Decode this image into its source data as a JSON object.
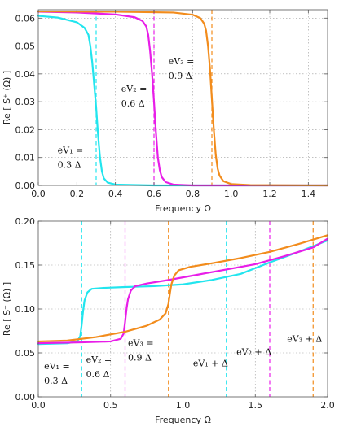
{
  "colors": {
    "eV1": "#22e5ee",
    "eV2": "#e81ee8",
    "eV3": "#f28c1c"
  },
  "chart_data": [
    {
      "type": "line",
      "xlabel": "Frequency Ω",
      "ylabel": "Re [ S⁺ (Ω) ]",
      "xlim": [
        0.0,
        1.5
      ],
      "ylim": [
        0.0,
        0.063
      ],
      "xticks": [
        0.0,
        0.2,
        0.4,
        0.6,
        0.8,
        1.0,
        1.2,
        1.4
      ],
      "xtick_labels": [
        "0.0",
        "0.2",
        "0.4",
        "0.6",
        "0.8",
        "1.0",
        "1.2",
        "1.4"
      ],
      "yticks": [
        0.0,
        0.01,
        0.02,
        0.03,
        0.04,
        0.05,
        0.06
      ],
      "ytick_labels": [
        "0.00",
        "0.01",
        "0.02",
        "0.03",
        "0.04",
        "0.05",
        "0.06"
      ],
      "grid": true,
      "series": [
        {
          "color": "eV1",
          "x": [
            0.0,
            0.1,
            0.2,
            0.24,
            0.26,
            0.27,
            0.28,
            0.29,
            0.3,
            0.31,
            0.32,
            0.33,
            0.34,
            0.36,
            0.4,
            0.6,
            1.5
          ],
          "y": [
            0.0608,
            0.0602,
            0.0585,
            0.0565,
            0.054,
            0.05,
            0.044,
            0.036,
            0.028,
            0.018,
            0.01,
            0.005,
            0.0025,
            0.001,
            0.0003,
            0.0,
            0.0
          ]
        },
        {
          "color": "eV2",
          "x": [
            0.0,
            0.2,
            0.4,
            0.5,
            0.54,
            0.56,
            0.57,
            0.58,
            0.59,
            0.6,
            0.61,
            0.62,
            0.63,
            0.64,
            0.66,
            0.7,
            0.8,
            1.5
          ],
          "y": [
            0.0623,
            0.062,
            0.0613,
            0.0603,
            0.059,
            0.057,
            0.054,
            0.048,
            0.04,
            0.03,
            0.019,
            0.01,
            0.0055,
            0.003,
            0.0012,
            0.0003,
            0.0,
            0.0
          ]
        },
        {
          "color": "eV3",
          "x": [
            0.0,
            0.4,
            0.7,
            0.8,
            0.84,
            0.86,
            0.87,
            0.88,
            0.89,
            0.9,
            0.91,
            0.92,
            0.93,
            0.94,
            0.96,
            1.0,
            1.1,
            1.5
          ],
          "y": [
            0.0624,
            0.0623,
            0.062,
            0.0612,
            0.06,
            0.058,
            0.0555,
            0.05,
            0.042,
            0.031,
            0.02,
            0.011,
            0.006,
            0.0035,
            0.0015,
            0.0005,
            0.0001,
            0.0
          ]
        }
      ],
      "vlines": [
        {
          "x": 0.3,
          "color": "eV1"
        },
        {
          "x": 0.6,
          "color": "eV2"
        },
        {
          "x": 0.9,
          "color": "eV3"
        }
      ],
      "annotations": [
        {
          "line1": "eV₁ =",
          "line2": "0.3 Δ",
          "x": 0.1,
          "y": 0.0115
        },
        {
          "line1": "eV₂ =",
          "line2": "0.6 Δ",
          "x": 0.43,
          "y": 0.0335
        },
        {
          "line1": "eV₃ =",
          "line2": "0.9 Δ",
          "x": 0.675,
          "y": 0.0435
        }
      ]
    },
    {
      "type": "line",
      "xlabel": "Frequency Ω",
      "ylabel": "Re [ S⁻ (Ω) ]",
      "xlim": [
        0.0,
        2.0
      ],
      "ylim": [
        0.0,
        0.2
      ],
      "xticks": [
        0.0,
        0.5,
        1.0,
        1.5,
        2.0
      ],
      "xtick_labels": [
        "0.0",
        "0.5",
        "1.0",
        "1.5",
        "2.0"
      ],
      "yticks": [
        0.0,
        0.05,
        0.1,
        0.15,
        0.2
      ],
      "ytick_labels": [
        "0.00",
        "0.05",
        "0.10",
        "0.15",
        "0.20"
      ],
      "grid": true,
      "series": [
        {
          "color": "eV1",
          "x": [
            0.0,
            0.2,
            0.27,
            0.29,
            0.3,
            0.31,
            0.32,
            0.34,
            0.37,
            0.45,
            0.6,
            0.8,
            1.0,
            1.2,
            1.4,
            1.6,
            1.8,
            2.0
          ],
          "y": [
            0.06,
            0.061,
            0.063,
            0.069,
            0.082,
            0.098,
            0.11,
            0.119,
            0.123,
            0.124,
            0.125,
            0.126,
            0.128,
            0.133,
            0.14,
            0.153,
            0.165,
            0.178
          ]
        },
        {
          "color": "eV2",
          "x": [
            0.0,
            0.3,
            0.5,
            0.57,
            0.59,
            0.6,
            0.61,
            0.62,
            0.64,
            0.67,
            0.75,
            0.9,
            1.1,
            1.3,
            1.5,
            1.7,
            1.9,
            2.0
          ],
          "y": [
            0.061,
            0.062,
            0.063,
            0.066,
            0.072,
            0.085,
            0.1,
            0.111,
            0.121,
            0.126,
            0.129,
            0.133,
            0.139,
            0.145,
            0.151,
            0.16,
            0.17,
            0.18
          ]
        },
        {
          "color": "eV3",
          "x": [
            0.0,
            0.2,
            0.4,
            0.6,
            0.75,
            0.84,
            0.88,
            0.9,
            0.91,
            0.92,
            0.94,
            0.97,
            1.05,
            1.2,
            1.4,
            1.6,
            1.8,
            2.0
          ],
          "y": [
            0.063,
            0.064,
            0.068,
            0.074,
            0.081,
            0.088,
            0.095,
            0.106,
            0.118,
            0.128,
            0.138,
            0.144,
            0.148,
            0.152,
            0.158,
            0.165,
            0.174,
            0.184
          ]
        }
      ],
      "vlines": [
        {
          "x": 0.3,
          "color": "eV1"
        },
        {
          "x": 0.6,
          "color": "eV2"
        },
        {
          "x": 0.9,
          "color": "eV3"
        },
        {
          "x": 1.3,
          "color": "eV1"
        },
        {
          "x": 1.6,
          "color": "eV2"
        },
        {
          "x": 1.9,
          "color": "eV3"
        }
      ],
      "annotations": [
        {
          "line1": "eV₁ =",
          "line2": "0.3 Δ",
          "x": 0.04,
          "y": 0.0315
        },
        {
          "line1": "eV₂ =",
          "line2": "0.6 Δ",
          "x": 0.33,
          "y": 0.039
        },
        {
          "line1": "eV₃ =",
          "line2": "0.9 Δ",
          "x": 0.62,
          "y": 0.058
        },
        {
          "line1": "eV₁ + Δ",
          "line2": "",
          "x": 1.07,
          "y": 0.0345
        },
        {
          "line1": "eV₂ + Δ",
          "line2": "",
          "x": 1.37,
          "y": 0.0475
        },
        {
          "line1": "eV₃ + Δ",
          "line2": "",
          "x": 1.72,
          "y": 0.0625
        }
      ]
    }
  ]
}
